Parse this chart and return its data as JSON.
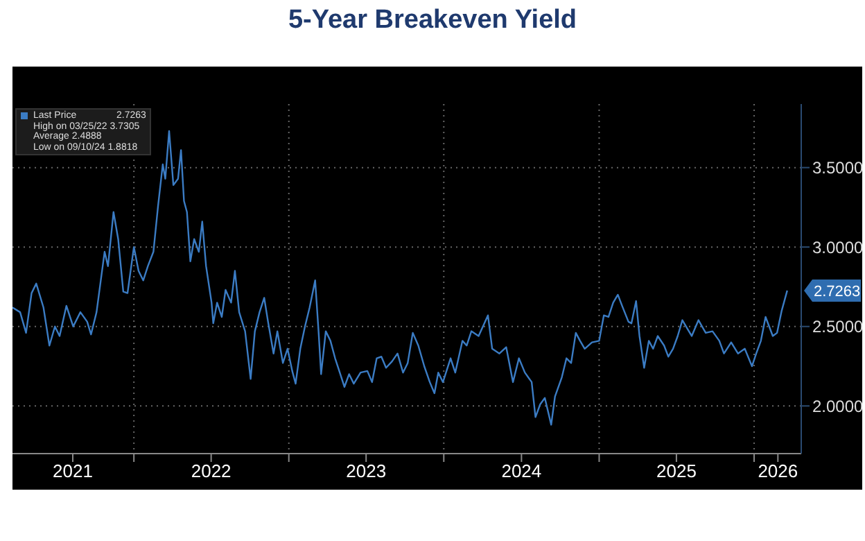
{
  "chart_data": {
    "type": "line",
    "title": "5-Year Breakeven Yield",
    "x": [
      "2021-03-21",
      "2021-04-08",
      "2021-04-22",
      "2021-05-05",
      "2021-05-16",
      "2021-06-02",
      "2021-06-16",
      "2021-06-29",
      "2021-07-10",
      "2021-07-26",
      "2021-08-11",
      "2021-08-28",
      "2021-09-13",
      "2021-09-22",
      "2021-10-05",
      "2021-10-24",
      "2021-11-01",
      "2021-11-14",
      "2021-11-25",
      "2021-12-07",
      "2021-12-17",
      "2022-01-01",
      "2022-01-12",
      "2022-01-23",
      "2022-02-03",
      "2022-02-16",
      "2022-02-27",
      "2022-03-10",
      "2022-03-16",
      "2022-03-25",
      "2022-04-04",
      "2022-04-15",
      "2022-04-22",
      "2022-04-29",
      "2022-05-06",
      "2022-05-14",
      "2022-05-23",
      "2022-06-03",
      "2022-06-11",
      "2022-06-20",
      "2022-07-03",
      "2022-07-07",
      "2022-07-16",
      "2022-07-27",
      "2022-08-05",
      "2022-08-18",
      "2022-08-27",
      "2022-09-06",
      "2022-09-20",
      "2022-10-03",
      "2022-10-13",
      "2022-10-24",
      "2022-11-04",
      "2022-11-13",
      "2022-11-26",
      "2022-12-05",
      "2022-12-18",
      "2022-12-29",
      "2023-01-09",
      "2023-01-17",
      "2023-01-28",
      "2023-02-08",
      "2023-02-19",
      "2023-03-04",
      "2023-03-12",
      "2023-03-18",
      "2023-03-29",
      "2023-04-09",
      "2023-04-20",
      "2023-05-01",
      "2023-05-12",
      "2023-05-23",
      "2023-06-03",
      "2023-06-19",
      "2023-07-05",
      "2023-07-16",
      "2023-07-27",
      "2023-08-07",
      "2023-08-18",
      "2023-09-01",
      "2023-09-14",
      "2023-09-27",
      "2023-10-08",
      "2023-10-20",
      "2023-11-02",
      "2023-11-16",
      "2023-11-29",
      "2023-12-10",
      "2023-12-19",
      "2023-12-30",
      "2024-01-17",
      "2024-01-28",
      "2024-02-14",
      "2024-02-24",
      "2024-03-06",
      "2024-03-23",
      "2024-04-14",
      "2024-04-24",
      "2024-05-11",
      "2024-05-27",
      "2024-06-12",
      "2024-06-26",
      "2024-07-10",
      "2024-07-26",
      "2024-08-04",
      "2024-08-15",
      "2024-08-26",
      "2024-09-10",
      "2024-09-19",
      "2024-10-05",
      "2024-10-16",
      "2024-10-27",
      "2024-11-07",
      "2024-11-17",
      "2024-11-28",
      "2024-12-15",
      "2025-01-01",
      "2025-01-12",
      "2025-01-23",
      "2025-02-03",
      "2025-02-14",
      "2025-02-24",
      "2025-03-11",
      "2025-03-18",
      "2025-03-29",
      "2025-04-06",
      "2025-04-17",
      "2025-04-28",
      "2025-05-08",
      "2025-05-19",
      "2025-06-03",
      "2025-06-13",
      "2025-06-24",
      "2025-07-05",
      "2025-07-16",
      "2025-07-27",
      "2025-08-07",
      "2025-08-23",
      "2025-09-09",
      "2025-09-25",
      "2025-10-11",
      "2025-10-22",
      "2025-11-08",
      "2025-11-24",
      "2025-12-10",
      "2025-12-27",
      "2026-01-06",
      "2026-01-17",
      "2026-01-28",
      "2026-02-14",
      "2026-02-24",
      "2026-03-07",
      "2026-03-20"
    ],
    "series": [
      {
        "name": "Last Price",
        "color": "#3b7cc4",
        "values": [
          2.62,
          2.59,
          2.46,
          2.71,
          2.77,
          2.62,
          2.38,
          2.5,
          2.44,
          2.63,
          2.5,
          2.59,
          2.53,
          2.45,
          2.59,
          2.97,
          2.88,
          3.22,
          3.05,
          2.72,
          2.71,
          3.0,
          2.85,
          2.79,
          2.88,
          2.97,
          3.26,
          3.52,
          3.43,
          3.7305,
          3.39,
          3.43,
          3.61,
          3.29,
          3.22,
          2.91,
          3.05,
          2.97,
          3.16,
          2.88,
          2.65,
          2.52,
          2.65,
          2.56,
          2.73,
          2.65,
          2.85,
          2.59,
          2.47,
          2.17,
          2.47,
          2.59,
          2.68,
          2.53,
          2.33,
          2.47,
          2.27,
          2.36,
          2.22,
          2.14,
          2.36,
          2.5,
          2.62,
          2.79,
          2.47,
          2.2,
          2.47,
          2.41,
          2.3,
          2.21,
          2.12,
          2.2,
          2.14,
          2.21,
          2.22,
          2.15,
          2.3,
          2.31,
          2.24,
          2.28,
          2.33,
          2.21,
          2.27,
          2.46,
          2.38,
          2.25,
          2.15,
          2.08,
          2.21,
          2.15,
          2.3,
          2.21,
          2.41,
          2.38,
          2.47,
          2.44,
          2.57,
          2.36,
          2.33,
          2.37,
          2.15,
          2.3,
          2.21,
          2.15,
          1.93,
          2.01,
          2.05,
          1.8818,
          2.06,
          2.18,
          2.3,
          2.27,
          2.46,
          2.41,
          2.36,
          2.4,
          2.41,
          2.57,
          2.56,
          2.65,
          2.7,
          2.63,
          2.53,
          2.52,
          2.66,
          2.44,
          2.24,
          2.41,
          2.36,
          2.44,
          2.38,
          2.31,
          2.36,
          2.44,
          2.54,
          2.49,
          2.44,
          2.54,
          2.46,
          2.47,
          2.41,
          2.33,
          2.4,
          2.33,
          2.36,
          2.25,
          2.33,
          2.41,
          2.56,
          2.44,
          2.46,
          2.6,
          2.7263
        ]
      }
    ],
    "xlim": [
      "2021-03-21",
      "2026-04-22"
    ],
    "xticks": [
      {
        "value": "2021-08-10",
        "label": "2021"
      },
      {
        "value": "2022-01-01",
        "label": null
      },
      {
        "value": "2022-07-02",
        "label": "2022"
      },
      {
        "value": "2023-01-01",
        "label": null
      },
      {
        "value": "2023-07-02",
        "label": "2023"
      },
      {
        "value": "2024-01-01",
        "label": null
      },
      {
        "value": "2024-07-02",
        "label": "2024"
      },
      {
        "value": "2025-01-01",
        "label": null
      },
      {
        "value": "2025-07-02",
        "label": "2025"
      },
      {
        "value": "2026-01-01",
        "label": null
      },
      {
        "value": "2026-02-26",
        "label": "2026"
      }
    ],
    "ylim": [
      1.7,
      3.9
    ],
    "yticks": [
      {
        "value": 2,
        "label": "2.0000"
      },
      {
        "value": 2.5,
        "label": "2.5000"
      },
      {
        "value": 3,
        "label": "3.0000"
      },
      {
        "value": 3.5,
        "label": "3.5000"
      }
    ],
    "grid": true,
    "legend": "top left",
    "marker": "none",
    "line_style": "solid",
    "annotations": [
      {
        "text": "2.7263",
        "x": "2026-03-20",
        "y": 2.7263
      },
      "High on 03/25/22 3.7305",
      "Average 2.4888",
      "Low on 09/10/24 1.8818"
    ]
  }
}
